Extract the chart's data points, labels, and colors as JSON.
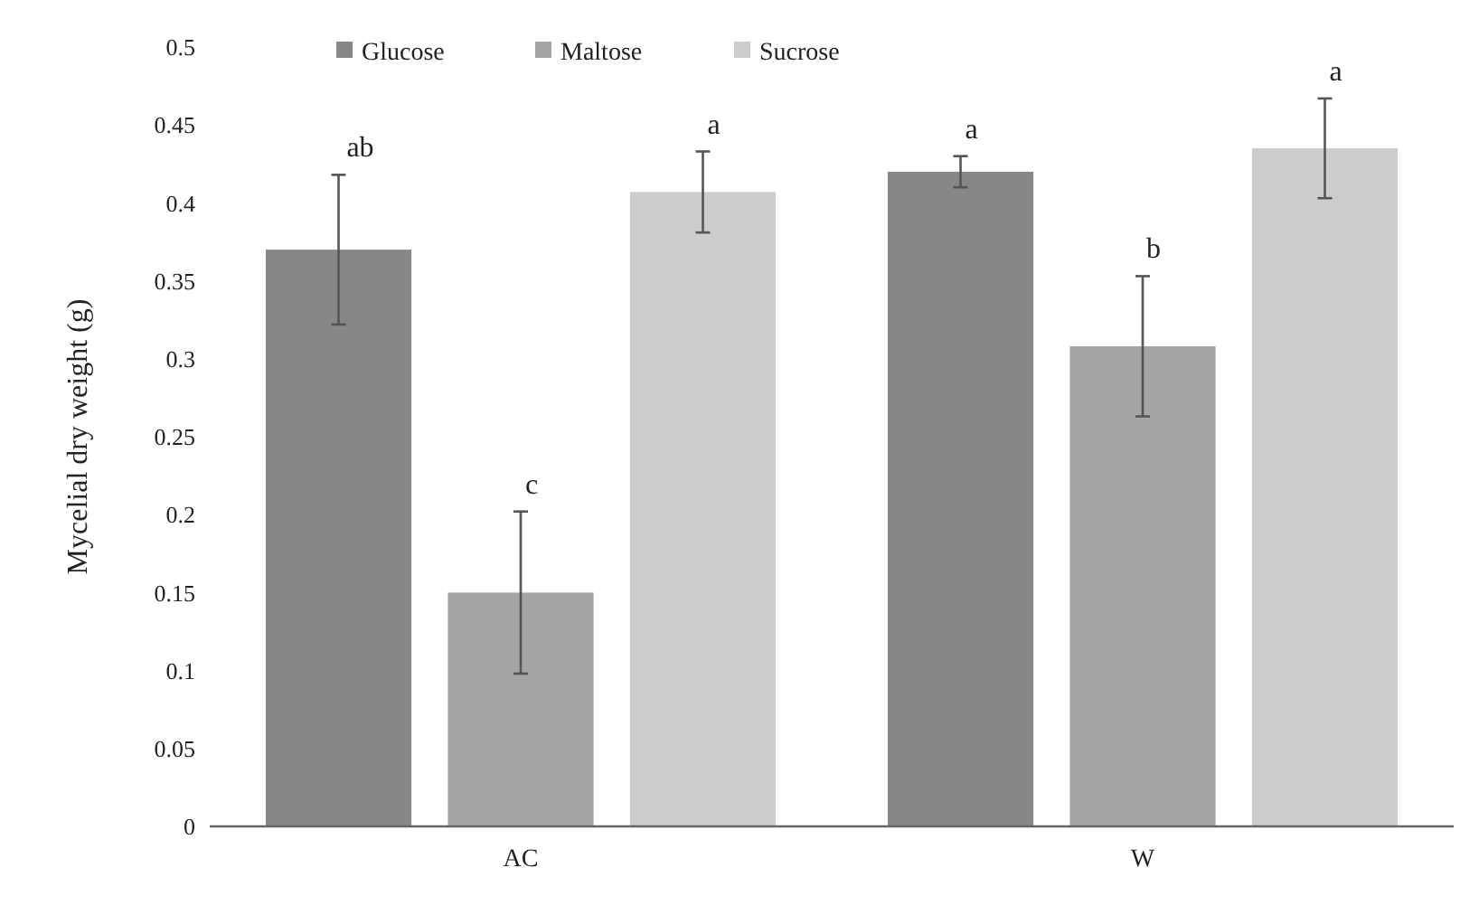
{
  "chart_data": {
    "type": "bar",
    "ylabel": "Mycelial dry weight (g)",
    "categories": [
      "AC",
      "W"
    ],
    "series": [
      {
        "name": "Glucose",
        "color": "#878787",
        "values": [
          0.37,
          0.42
        ],
        "errors": [
          0.048,
          0.01
        ]
      },
      {
        "name": "Maltose",
        "color": "#a5a5a5",
        "values": [
          0.15,
          0.308
        ],
        "errors": [
          0.052,
          0.045
        ]
      },
      {
        "name": "Sucrose",
        "color": "#cccccc",
        "values": [
          0.407,
          0.435
        ],
        "errors": [
          0.026,
          0.032
        ]
      }
    ],
    "ylim": [
      0,
      0.5
    ],
    "yticks": [
      0,
      0.05,
      0.1,
      0.15,
      0.2,
      0.25,
      0.3,
      0.35,
      0.4,
      0.45,
      0.5
    ],
    "grid": false,
    "legend": "top left",
    "annotations": [
      "ab",
      "c",
      "a",
      "a",
      "b",
      "a"
    ]
  }
}
